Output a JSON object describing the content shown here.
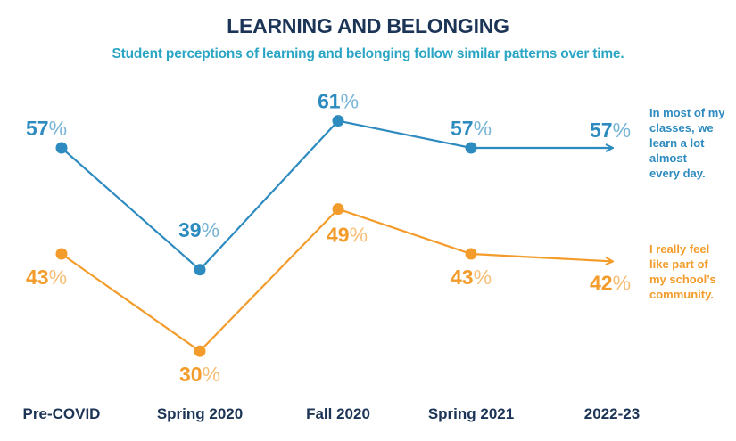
{
  "title": "LEARNING AND BELONGING",
  "subtitle": "Student perceptions of learning and belonging follow similar patterns over time.",
  "colors": {
    "title": "#1c3557",
    "subtitle": "#2aa6c4",
    "series_learning": "#2e8bc0",
    "series_belonging": "#f39c2b"
  },
  "chart_data": {
    "type": "line",
    "title": "LEARNING AND BELONGING",
    "subtitle": "Student perceptions of learning and belonging follow similar patterns over time.",
    "xlabel": "",
    "ylabel": "",
    "grid": false,
    "categories": [
      "Pre-COVID",
      "Spring 2020",
      "Fall 2020",
      "Spring 2021",
      "2022-23"
    ],
    "ylim": [
      25,
      65
    ],
    "legend_placement": "right (end-of-line labels)",
    "series": [
      {
        "name": "In most of my classes, we learn a lot almost every day.",
        "label_lines": [
          "In most of my",
          "classes, we",
          "learn a lot",
          "almost",
          "every day."
        ],
        "color": "#2e8bc0",
        "values": [
          57,
          39,
          61,
          57,
          57
        ],
        "value_labels": [
          "57",
          "39",
          "61",
          "57",
          "57"
        ],
        "last_point_style": "arrow"
      },
      {
        "name": "I really feel like part of my school's community.",
        "label_lines": [
          "I really feel",
          "like part of",
          "my school’s",
          "community."
        ],
        "color": "#f39c2b",
        "values": [
          43,
          30,
          49,
          43,
          42
        ],
        "value_labels": [
          "43",
          "30",
          "49",
          "43",
          "42"
        ],
        "last_point_style": "arrow"
      }
    ],
    "percent_suffix": "%"
  }
}
